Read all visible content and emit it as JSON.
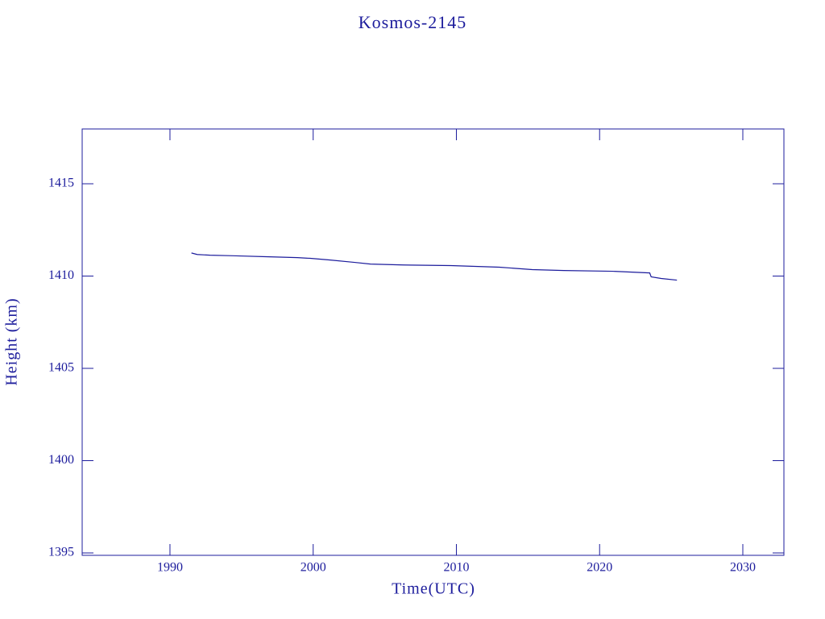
{
  "chart_data": {
    "type": "line",
    "title": "Kosmos-2145",
    "xlabel": "Time(UTC)",
    "ylabel": "Height (km)",
    "color": "#1c1c9c",
    "x": [
      1991.5,
      1991.9,
      1992.8,
      1994.4,
      1996.7,
      1998.9,
      1999.8,
      2001.2,
      2002.9,
      2004.0,
      2006.3,
      2009.6,
      2013.0,
      2015.3,
      2017.5,
      2020.9,
      2023.5,
      2023.6,
      2024.3,
      2025.4
    ],
    "values": [
      1411.25,
      1411.17,
      1411.13,
      1411.1,
      1411.05,
      1411.0,
      1410.96,
      1410.87,
      1410.74,
      1410.65,
      1410.6,
      1410.57,
      1410.48,
      1410.35,
      1410.3,
      1410.26,
      1410.17,
      1409.96,
      1409.87,
      1409.78
    ],
    "xlim": [
      1983.87,
      2032.87
    ],
    "xticks": [
      1990,
      2000,
      2010,
      2020,
      2030
    ],
    "ylim": [
      1394.87,
      1417.97
    ],
    "yticks": [
      1395,
      1400,
      1405,
      1410,
      1415
    ]
  }
}
